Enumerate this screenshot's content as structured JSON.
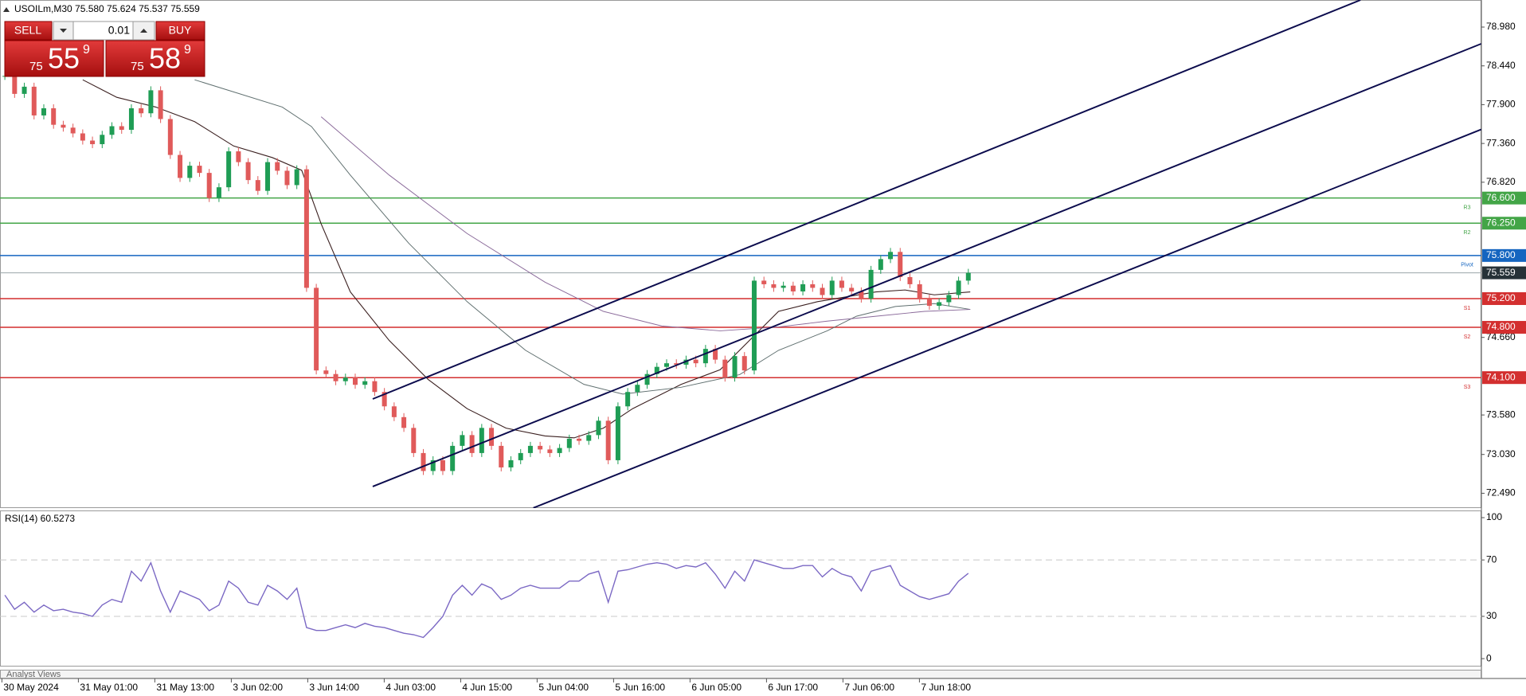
{
  "header": {
    "title": "USOILm,M30  75.580 75.624 75.537 75.559"
  },
  "trade_panel": {
    "sell": "SELL",
    "buy": "BUY",
    "lot": "0.01",
    "bid": {
      "big": "75",
      "mid": "55",
      "small": "9"
    },
    "ask": {
      "big": "75",
      "mid": "58",
      "small": "9"
    }
  },
  "price_chart": {
    "ylim": [
      72.284,
      79.357
    ],
    "ticks": [
      {
        "value": 78.98,
        "label": "78.980"
      },
      {
        "value": 78.44,
        "label": "78.440"
      },
      {
        "value": 77.9,
        "label": "77.900"
      },
      {
        "value": 77.36,
        "label": "77.360"
      },
      {
        "value": 76.82,
        "label": "76.820"
      },
      {
        "value": 74.66,
        "label": "74.660"
      },
      {
        "value": 73.58,
        "label": "73.580"
      },
      {
        "value": 73.03,
        "label": "73.030"
      },
      {
        "value": 72.49,
        "label": "72.490"
      }
    ],
    "levels": [
      {
        "name": "R3",
        "value": 76.6,
        "label": "76.600",
        "color": "#43a547"
      },
      {
        "name": "R2",
        "value": 76.25,
        "label": "76.250",
        "color": "#43a547"
      },
      {
        "name": "Pivot",
        "value": 75.8,
        "label": "75.800",
        "color": "#1565c0"
      },
      {
        "name": "S1",
        "value": 75.2,
        "label": "75.200",
        "color": "#d32f2f"
      },
      {
        "name": "S2",
        "value": 74.8,
        "label": "74.800",
        "color": "#d32f2f"
      },
      {
        "name": "S3",
        "value": 74.1,
        "label": "74.100",
        "color": "#d32f2f"
      }
    ],
    "current": {
      "value": 75.559,
      "label": "75.559"
    },
    "closes": [
      78.3,
      78.05,
      78.15,
      77.75,
      77.85,
      77.62,
      77.58,
      77.5,
      77.4,
      77.35,
      77.48,
      77.6,
      77.55,
      77.85,
      77.78,
      78.1,
      77.7,
      77.2,
      76.88,
      77.05,
      76.95,
      76.6,
      76.75,
      77.25,
      77.1,
      76.85,
      76.7,
      77.1,
      76.98,
      76.78,
      77.0,
      75.35,
      74.2,
      74.15,
      74.05,
      74.1,
      74.0,
      74.05,
      73.9,
      73.7,
      73.55,
      73.4,
      73.05,
      72.8,
      72.95,
      72.8,
      73.15,
      73.3,
      73.05,
      73.4,
      73.15,
      72.85,
      72.95,
      73.05,
      73.15,
      73.1,
      73.05,
      73.12,
      73.25,
      73.22,
      73.3,
      73.5,
      72.95,
      73.7,
      73.9,
      74.0,
      74.15,
      74.25,
      74.3,
      74.28,
      74.35,
      74.3,
      74.5,
      74.35,
      74.1,
      74.4,
      74.2,
      75.45,
      75.4,
      75.35,
      75.38,
      75.3,
      75.4,
      75.35,
      75.25,
      75.45,
      75.35,
      75.3,
      75.2,
      75.6,
      75.75,
      75.85,
      75.5,
      75.4,
      75.2,
      75.1,
      75.15,
      75.25,
      75.45,
      75.559
    ]
  },
  "rsi_panel": {
    "title": "RSI(14) 60.5273",
    "ylim": [
      -5.6,
      105.1
    ],
    "ticks": [
      100,
      70,
      30,
      0
    ],
    "levels": [
      70,
      30
    ],
    "values": [
      45,
      35,
      40,
      33,
      38,
      34,
      35,
      33,
      32,
      30,
      38,
      42,
      40,
      62,
      55,
      68,
      48,
      33,
      48,
      45,
      42,
      34,
      38,
      55,
      50,
      40,
      38,
      52,
      48,
      42,
      50,
      22,
      20,
      20,
      22,
      24,
      22,
      25,
      23,
      22,
      20,
      18,
      17,
      15,
      22,
      30,
      45,
      52,
      45,
      53,
      50,
      42,
      45,
      50,
      52,
      50,
      50,
      50,
      55,
      55,
      60,
      62,
      40,
      62,
      63,
      65,
      67,
      68,
      67,
      64,
      66,
      65,
      68,
      60,
      50,
      62,
      55,
      70,
      68,
      66,
      64,
      64,
      66,
      66,
      58,
      64,
      60,
      58,
      48,
      62,
      64,
      66,
      52,
      48,
      44,
      42,
      44,
      46,
      55,
      60.5273
    ]
  },
  "time_axis": {
    "labels": [
      "30 May 2024",
      "31 May 01:00",
      "31 May 13:00",
      "3 Jun 02:00",
      "3 Jun 14:00",
      "4 Jun 03:00",
      "4 Jun 15:00",
      "5 Jun 04:00",
      "5 Jun 16:00",
      "6 Jun 05:00",
      "6 Jun 17:00",
      "7 Jun 06:00",
      "7 Jun 18:00"
    ]
  },
  "footer": {
    "title": "Analyst Views"
  }
}
